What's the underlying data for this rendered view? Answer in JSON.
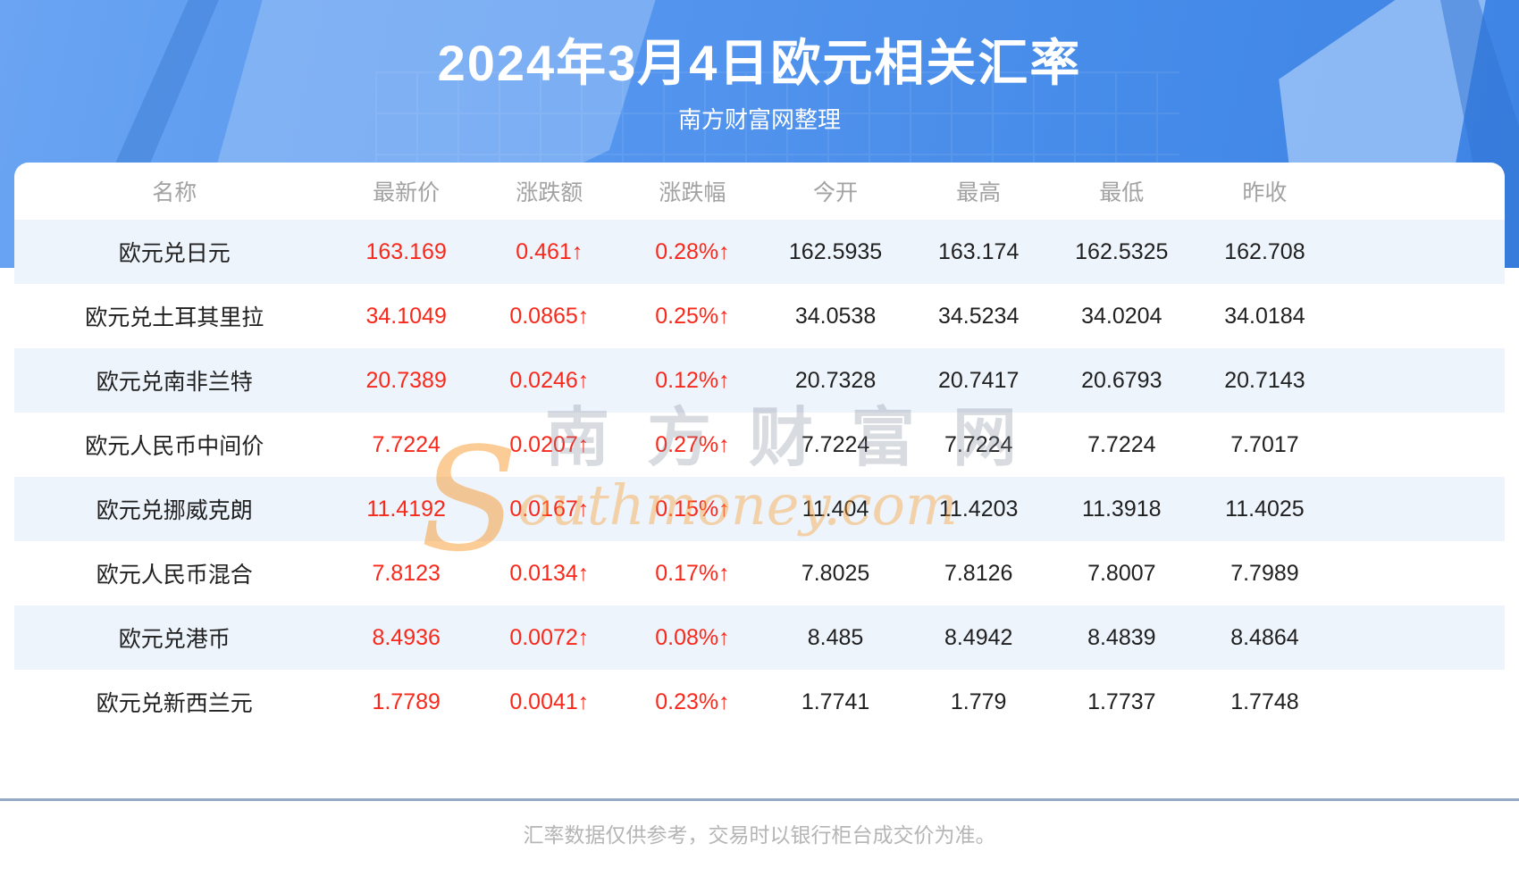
{
  "chart_data": {
    "type": "table",
    "title": "2024年3月4日欧元相关汇率",
    "subtitle": "南方财富网整理",
    "columns": [
      "名称",
      "最新价",
      "涨跌额",
      "涨跌幅",
      "今开",
      "最高",
      "最低",
      "昨收"
    ],
    "rows": [
      [
        "欧元兑日元",
        "163.169",
        "0.461↑",
        "0.28%↑",
        "162.5935",
        "163.174",
        "162.5325",
        "162.708"
      ],
      [
        "欧元兑土耳其里拉",
        "34.1049",
        "0.0865↑",
        "0.25%↑",
        "34.0538",
        "34.5234",
        "34.0204",
        "34.0184"
      ],
      [
        "欧元兑南非兰特",
        "20.7389",
        "0.0246↑",
        "0.12%↑",
        "20.7328",
        "20.7417",
        "20.6793",
        "20.7143"
      ],
      [
        "欧元人民币中间价",
        "7.7224",
        "0.0207↑",
        "0.27%↑",
        "7.7224",
        "7.7224",
        "7.7224",
        "7.7017"
      ],
      [
        "欧元兑挪威克朗",
        "11.4192",
        "0.0167↑",
        "0.15%↑",
        "11.404",
        "11.4203",
        "11.3918",
        "11.4025"
      ],
      [
        "欧元人民币混合",
        "7.8123",
        "0.0134↑",
        "0.17%↑",
        "7.8025",
        "7.8126",
        "7.8007",
        "7.7989"
      ],
      [
        "欧元兑港币",
        "8.4936",
        "0.0072↑",
        "0.08%↑",
        "8.485",
        "8.4942",
        "8.4839",
        "8.4864"
      ],
      [
        "欧元兑新西兰元",
        "1.7789",
        "0.0041↑",
        "0.23%↑",
        "1.7741",
        "1.779",
        "1.7737",
        "1.7748"
      ]
    ],
    "footnote": "汇率数据仅供参考，交易时以银行柜台成交价为准。",
    "legend_position": "none",
    "grid": false
  },
  "watermark": {
    "cjk": "南方财富网",
    "latin_first": "S",
    "latin_rest": "outhmoney.com"
  },
  "colors": {
    "banner_blue_light": "#6aa4f2",
    "banner_blue_dark": "#3e84e5",
    "row_stripe": "#eef4fc",
    "up_red": "#f8281a",
    "header_gray": "#a2a2a2",
    "divider_blue_gray": "#93a9c6",
    "footnote_gray": "#b5b5b5",
    "watermark_orange": "#f89e34"
  }
}
